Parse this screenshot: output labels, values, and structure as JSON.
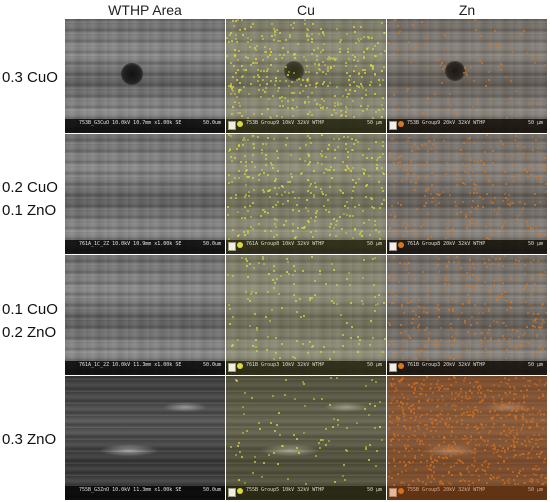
{
  "columns": [
    "WTHP Area",
    "Cu",
    "Zn"
  ],
  "rows": [
    {
      "label_lines": [
        "0.3 CuO"
      ],
      "sem_caption": "753B_G3CuO 10.0kV 10.7mm x1.00k SE",
      "sem_scale": "50.0um",
      "cu_caption": "753B Group9 10kV 32kV WTHP",
      "zn_caption": "753B Group9 20kV 32kV WTHP",
      "map_scale": "50 µm"
    },
    {
      "label_lines": [
        "0.2 CuO",
        "0.1 ZnO"
      ],
      "sem_caption": "761A_1C_2Z 10.0kV 10.9mm x1.00k SE",
      "sem_scale": "50.0um",
      "cu_caption": "761A Group8 10kV 32kV WTHP",
      "zn_caption": "761A Group8 20kV 32kV WTHP",
      "map_scale": "50 µm"
    },
    {
      "label_lines": [
        "0.1 CuO",
        "0.2 ZnO"
      ],
      "sem_caption": "761A_1C_2Z 10.0kV 11.3mm x1.00k SE",
      "sem_scale": "50.0um",
      "cu_caption": "761B Group3 10kV 32kV WTHP",
      "zn_caption": "761B Group3 20kV 32kV WTHP",
      "map_scale": "50 µm"
    },
    {
      "label_lines": [
        "0.3 ZnO"
      ],
      "sem_caption": "755B_G3ZnO 10.0kV 11.3mm x1.00k SE",
      "sem_scale": "50.0um",
      "cu_caption": "755B Group5 10kV 32kV WTHP",
      "zn_caption": "755B Group5 20kV 32kV WTHP",
      "map_scale": "50 µm"
    }
  ],
  "colors": {
    "cu_dot": "#e8e43a",
    "zn_dot": "#e07a1e",
    "background": "#ffffff"
  }
}
